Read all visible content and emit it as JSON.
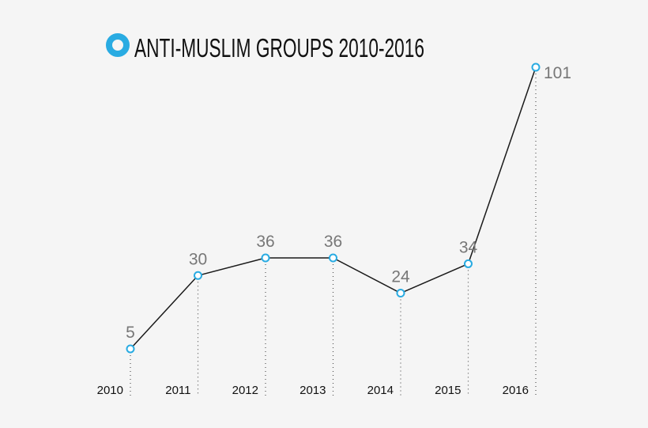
{
  "chart_data": {
    "type": "line",
    "title": "ANTI-MUSLIM GROUPS 2010-2016",
    "categories": [
      "2010",
      "2011",
      "2012",
      "2013",
      "2014",
      "2015",
      "2016"
    ],
    "values": [
      5,
      30,
      36,
      36,
      24,
      34,
      101
    ],
    "xlabel": "",
    "ylabel": "",
    "ylim": [
      0,
      101
    ],
    "grid": false,
    "legend": "none",
    "data_labels": true
  },
  "colors": {
    "accent": "#29abe2",
    "line": "#1a1a1a",
    "label": "#777777",
    "background": "#f5f5f5"
  }
}
